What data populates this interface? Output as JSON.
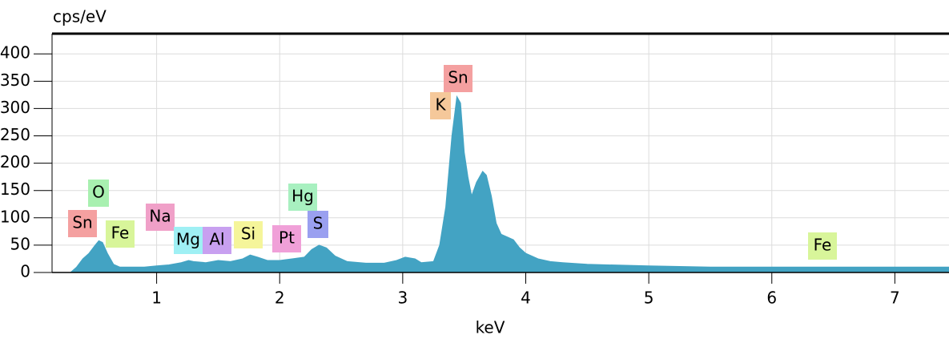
{
  "chart_data": {
    "type": "area",
    "y_label": "cps/eV",
    "x_label": "keV",
    "color": "#43a3c3",
    "grid": true,
    "xlim": [
      0.15,
      7.44
    ],
    "ylim": [
      0,
      437
    ],
    "xticks": [
      1,
      2,
      3,
      4,
      5,
      6,
      7
    ],
    "yticks": [
      0,
      50,
      100,
      150,
      200,
      250,
      300,
      350,
      400
    ],
    "x": [
      0.3,
      0.35,
      0.4,
      0.45,
      0.5,
      0.53,
      0.56,
      0.6,
      0.65,
      0.7,
      0.8,
      0.9,
      1.0,
      1.1,
      1.2,
      1.26,
      1.3,
      1.4,
      1.5,
      1.6,
      1.7,
      1.76,
      1.82,
      1.9,
      2.0,
      2.1,
      2.2,
      2.26,
      2.32,
      2.38,
      2.45,
      2.55,
      2.7,
      2.85,
      2.95,
      3.02,
      3.1,
      3.15,
      3.25,
      3.3,
      3.35,
      3.4,
      3.44,
      3.47,
      3.5,
      3.53,
      3.56,
      3.6,
      3.65,
      3.68,
      3.72,
      3.76,
      3.8,
      3.85,
      3.9,
      3.95,
      4.0,
      4.1,
      4.2,
      4.3,
      4.5,
      5.0,
      5.5,
      6.0,
      6.5,
      7.0,
      7.44
    ],
    "values": [
      0,
      10,
      25,
      35,
      50,
      58,
      55,
      35,
      15,
      10,
      10,
      10,
      12,
      14,
      18,
      22,
      20,
      18,
      22,
      20,
      25,
      32,
      28,
      22,
      22,
      25,
      28,
      42,
      50,
      45,
      30,
      20,
      17,
      17,
      22,
      28,
      25,
      18,
      20,
      50,
      120,
      250,
      322,
      310,
      220,
      175,
      140,
      165,
      185,
      178,
      140,
      90,
      70,
      65,
      60,
      45,
      35,
      25,
      20,
      18,
      15,
      12,
      10,
      10,
      10,
      10,
      10
    ],
    "annotations": [
      {
        "text": "Sn",
        "color": "#f4a0a0"
      },
      {
        "text": "O",
        "color": "#a8f0b0"
      },
      {
        "text": "Fe",
        "color": "#d8f59a"
      },
      {
        "text": "Na",
        "color": "#f0a0c8"
      },
      {
        "text": "Mg",
        "color": "#9ff0f4"
      },
      {
        "text": "Al",
        "color": "#c8a0f0"
      },
      {
        "text": "Si",
        "color": "#f5f59a"
      },
      {
        "text": "Pt",
        "color": "#f0a0d8"
      },
      {
        "text": "Hg",
        "color": "#a8f0c0"
      },
      {
        "text": "S",
        "color": "#9aa0f0"
      },
      {
        "text": "K",
        "color": "#f5c89a"
      },
      {
        "text": "Sn",
        "color": "#f4a0a0"
      },
      {
        "text": "Fe",
        "color": "#d8f59a"
      }
    ]
  }
}
